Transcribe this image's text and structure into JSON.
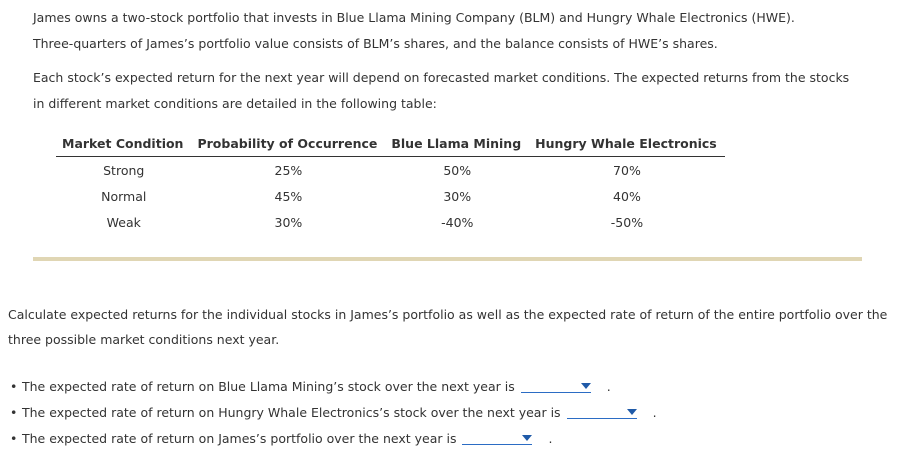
{
  "intro": {
    "paragraph1": "James owns a two-stock portfolio that invests in Blue Llama Mining Company (BLM) and Hungry Whale Electronics (HWE). Three-quarters of James’s portfolio value consists of BLM’s shares, and the balance consists of HWE’s shares.",
    "paragraph2": "Each stock’s expected return for the next year will depend on forecasted market conditions. The expected returns from the stocks in different market conditions are detailed in the following table:"
  },
  "table": {
    "headers": [
      "Market Condition",
      "Probability of Occurrence",
      "Blue Llama Mining",
      "Hungry Whale Electronics"
    ],
    "rows": [
      [
        "Strong",
        "25%",
        "50%",
        "70%"
      ],
      [
        "Normal",
        "45%",
        "30%",
        "40%"
      ],
      [
        "Weak",
        "30%",
        "-40%",
        "-50%"
      ]
    ]
  },
  "question": {
    "text": "Calculate expected returns for the individual stocks in James’s portfolio as well as the expected rate of return of the entire portfolio over the three possible market conditions next year."
  },
  "answers": [
    {
      "label": "The expected rate of return on Blue Llama Mining’s stock over the next year is",
      "value": ""
    },
    {
      "label": "The expected rate of return on Hungry Whale Electronics’s stock over the next year is",
      "value": ""
    },
    {
      "label": "The expected rate of return on James’s portfolio over the next year is",
      "value": ""
    }
  ],
  "punctuation": {
    "period": "."
  },
  "colors": {
    "dropdown_underline": "#2b6cc4",
    "divider": "#e0d6b4"
  }
}
